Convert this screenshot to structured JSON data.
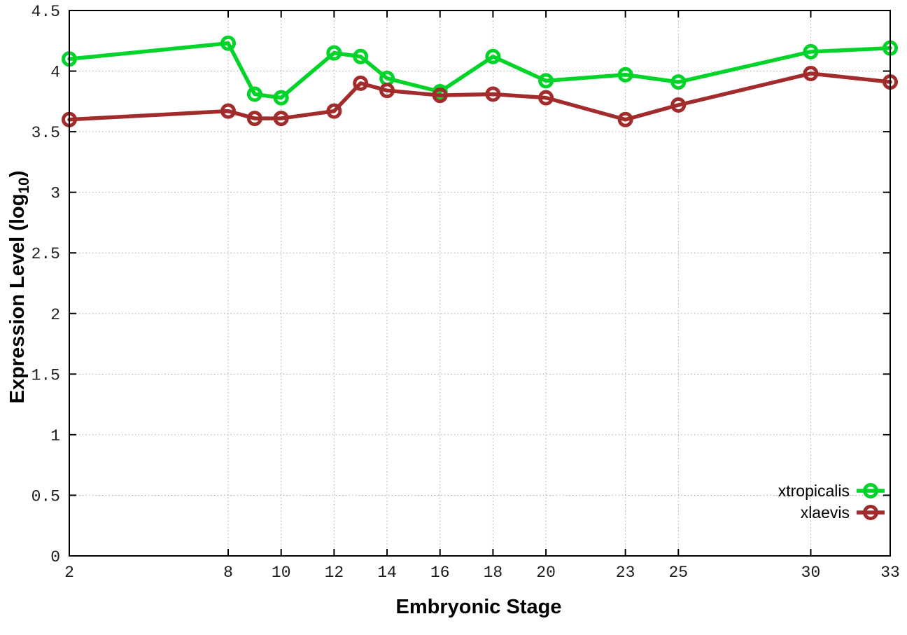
{
  "page": {
    "background": "#ffffff"
  },
  "chart_data": {
    "type": "line",
    "title": "",
    "xlabel": "Embryonic Stage",
    "ylabel": "Expression Level (log10)",
    "ylabel_parts": {
      "main": "Expression Level (log",
      "sub": "10",
      "close": ")"
    },
    "x": [
      2,
      8,
      9,
      10,
      12,
      13,
      14,
      16,
      18,
      20,
      23,
      25,
      30,
      33
    ],
    "xticks": [
      2,
      8,
      10,
      12,
      14,
      16,
      18,
      20,
      23,
      25,
      30,
      33
    ],
    "yticks": [
      0,
      0.5,
      1,
      1.5,
      2,
      2.5,
      3,
      3.5,
      4,
      4.5
    ],
    "xlim": [
      2,
      33
    ],
    "ylim": [
      0,
      4.5
    ],
    "grid": true,
    "grid_style": "dotted",
    "legend_position": "bottom-right-inside",
    "series": [
      {
        "name": "xtropicalis",
        "color": "#00d428",
        "marker": "open-circle",
        "values": [
          4.1,
          4.23,
          3.81,
          3.78,
          4.15,
          4.12,
          3.94,
          3.83,
          4.12,
          3.92,
          3.97,
          3.91,
          4.16,
          4.19
        ]
      },
      {
        "name": "xlaevis",
        "color": "#a22c2c",
        "marker": "open-circle",
        "values": [
          3.6,
          3.67,
          3.61,
          3.61,
          3.67,
          3.9,
          3.84,
          3.8,
          3.81,
          3.78,
          3.6,
          3.72,
          3.98,
          3.91
        ]
      }
    ],
    "axis_color": "#000000",
    "grid_color": "#a8a8a8",
    "tick_label_color": "#1c1c1c"
  }
}
